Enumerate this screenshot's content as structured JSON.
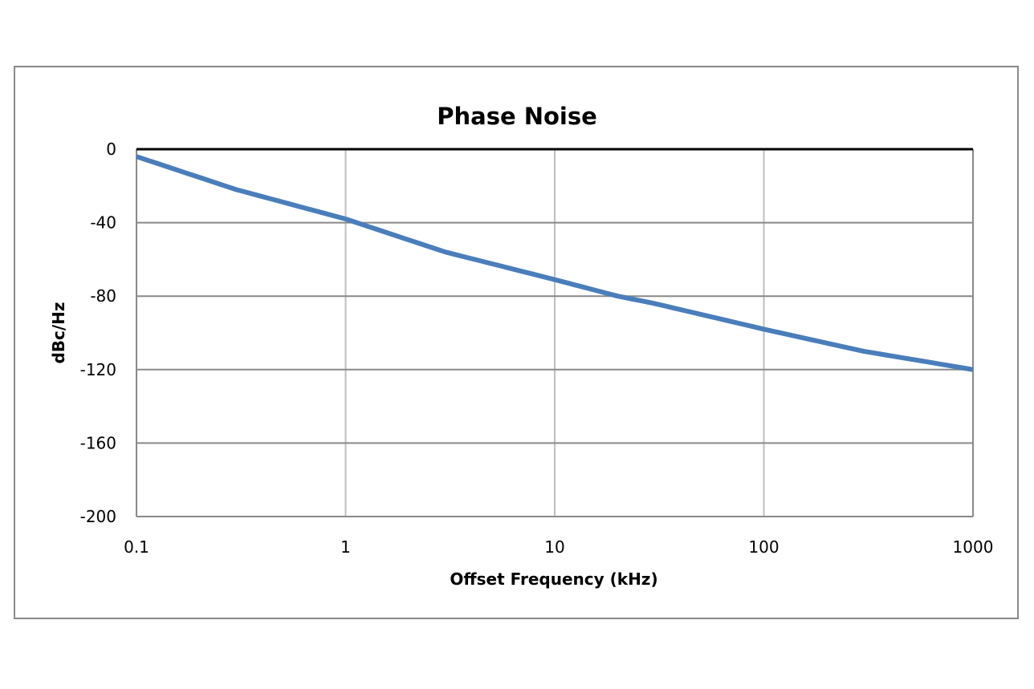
{
  "chart_data": {
    "type": "line",
    "title": "Phase Noise",
    "xlabel": "Offset Frequency (kHz)",
    "ylabel": "dBc/Hz",
    "x_scale": "log",
    "xlim": [
      0.1,
      1000
    ],
    "ylim": [
      -200,
      0
    ],
    "x_ticks": [
      "0.1",
      "1",
      "10",
      "100",
      "1000"
    ],
    "y_ticks": [
      "0",
      "-40",
      "-80",
      "-120",
      "-160",
      "-200"
    ],
    "grid": true,
    "legend": null,
    "series": [
      {
        "name": "Phase Noise",
        "color": "#4a7ebb",
        "x": [
          0.1,
          0.3,
          1,
          3,
          10,
          20,
          30,
          100,
          300,
          1000
        ],
        "values": [
          -4,
          -22,
          -38,
          -56,
          -71,
          -80,
          -84,
          -98,
          -110,
          -120
        ]
      }
    ]
  }
}
